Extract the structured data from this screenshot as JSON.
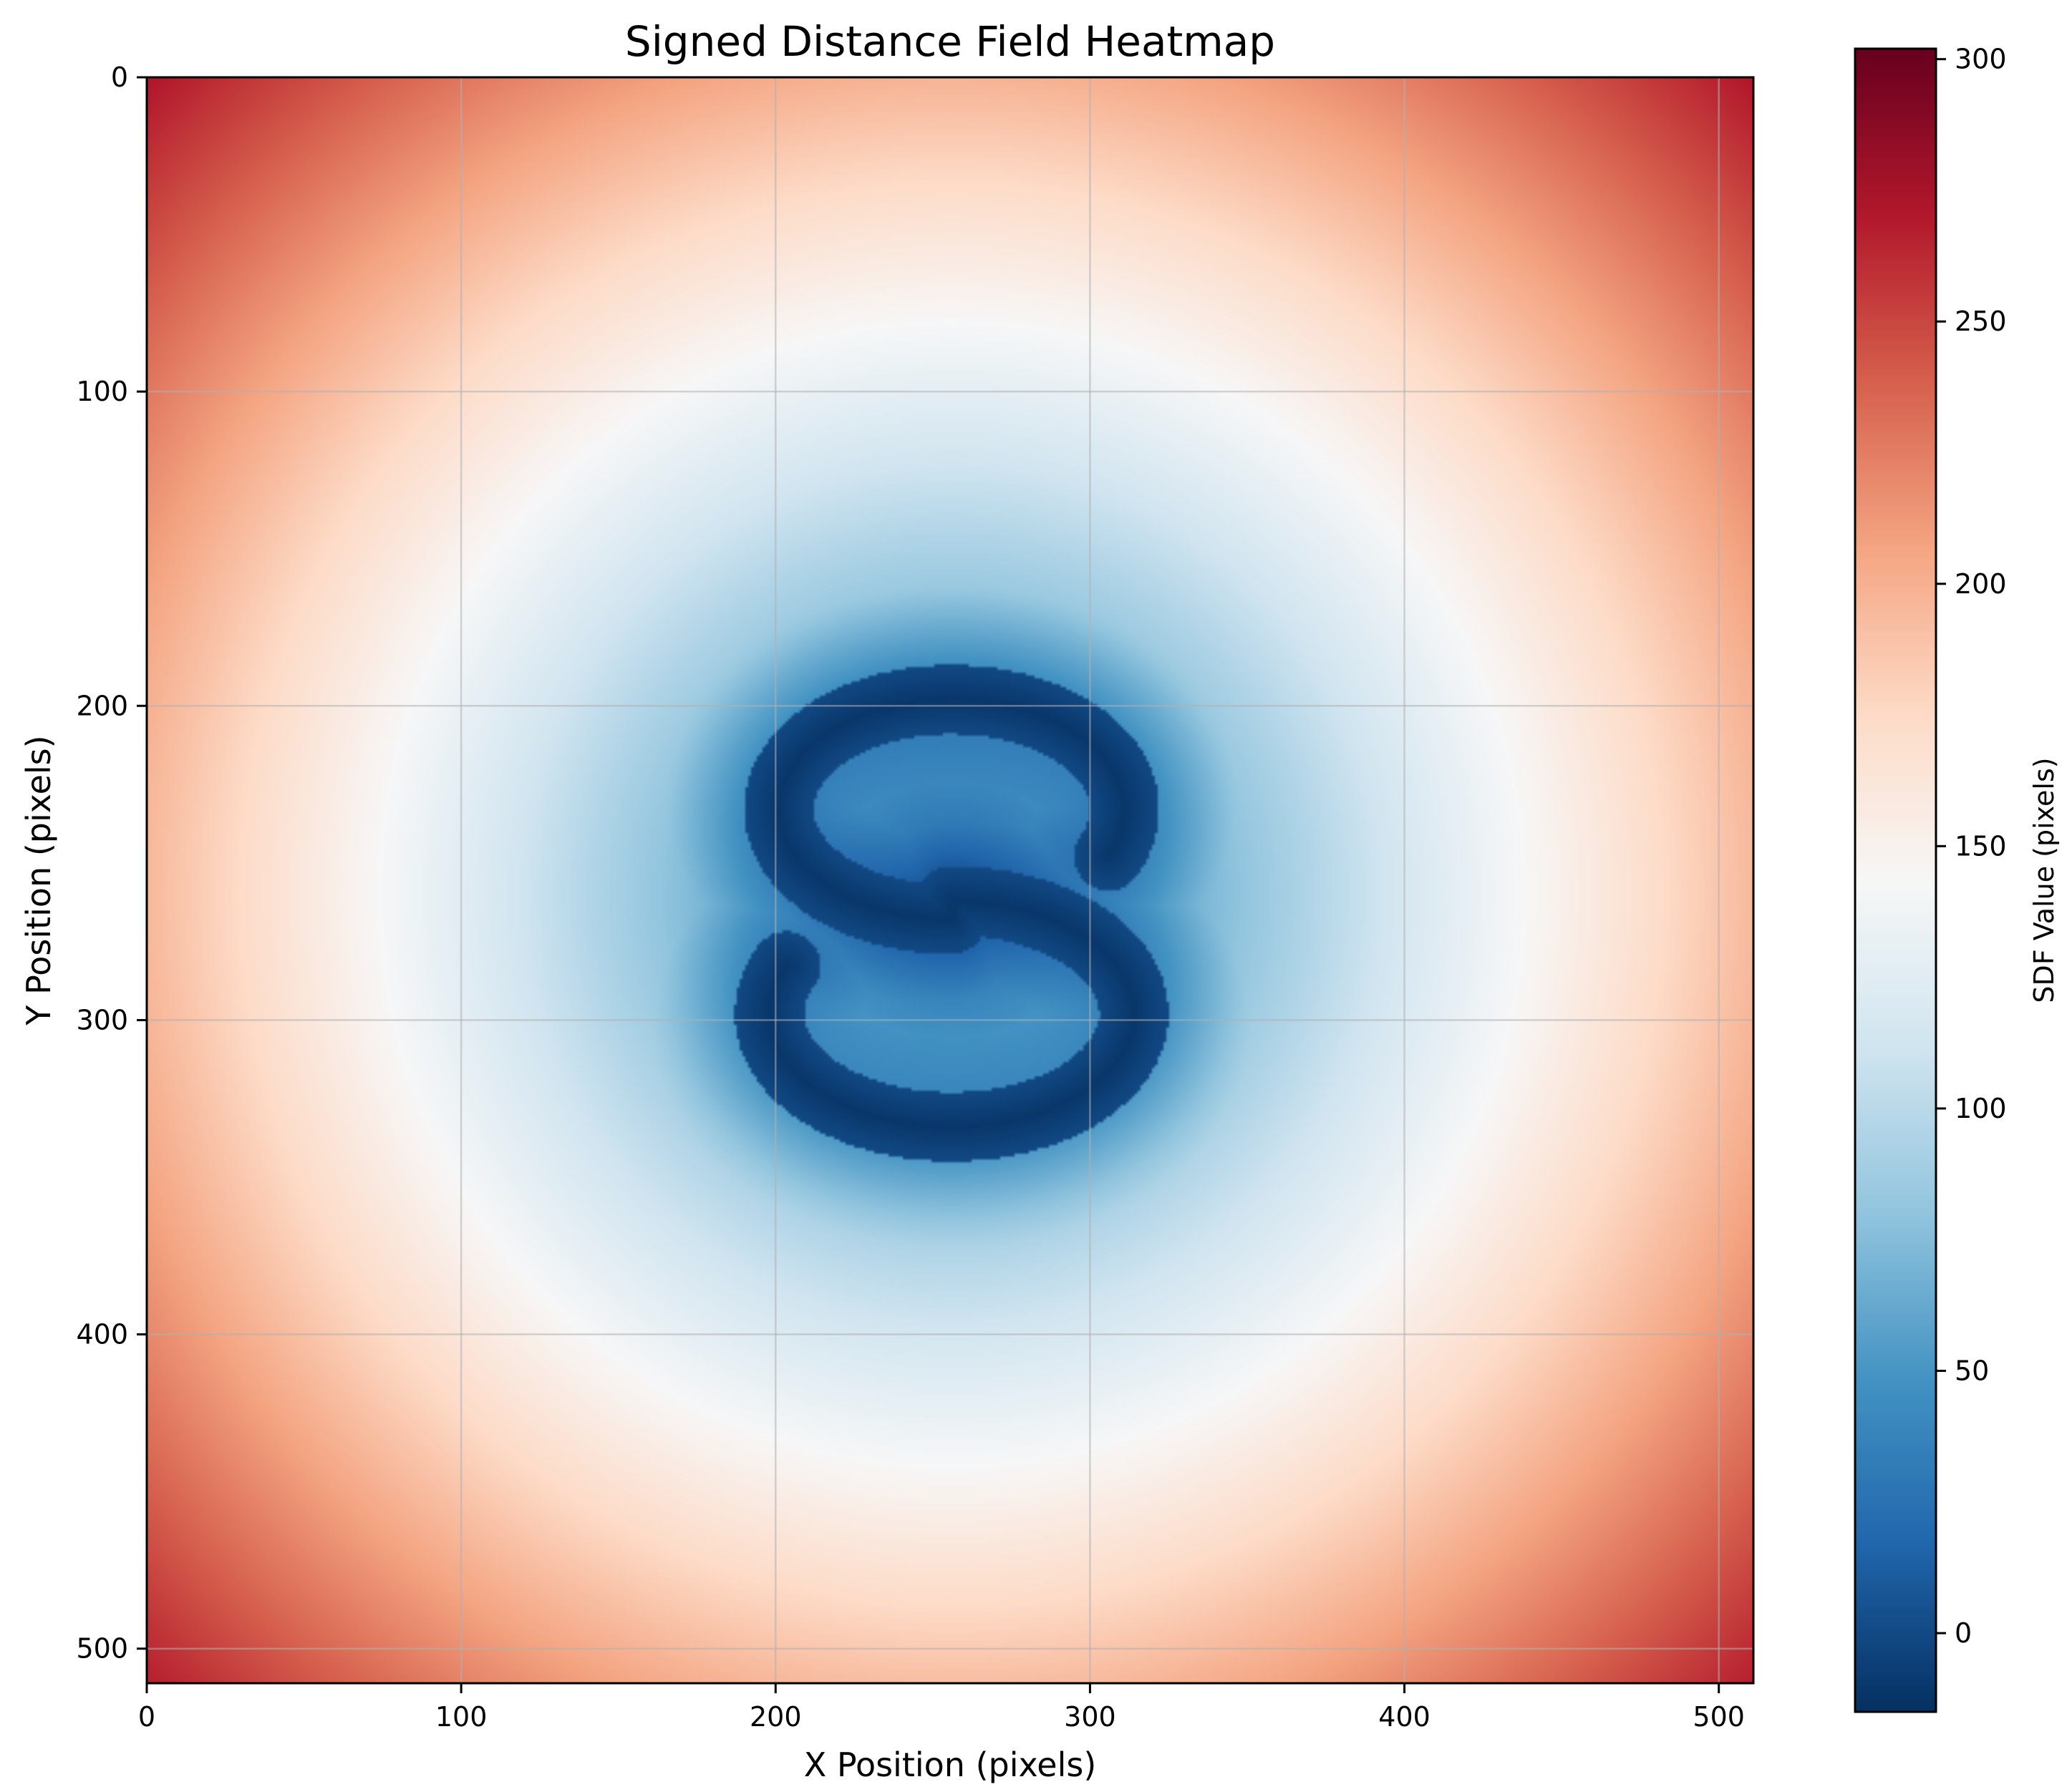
{
  "chart_data": {
    "type": "heatmap",
    "title": "Signed Distance Field Heatmap",
    "xlabel": "X Position (pixels)",
    "ylabel": "Y Position (pixels)",
    "colorbar_label": "SDF Value (pixels)",
    "colormap": "RdBu_r",
    "colormap_stops": [
      "#053061",
      "#2166ac",
      "#4393c3",
      "#92c5de",
      "#d1e5f0",
      "#f7f7f7",
      "#fddbc7",
      "#f4a582",
      "#d6604d",
      "#b2182b",
      "#67001f"
    ],
    "xlim": [
      0,
      511
    ],
    "ylim": [
      511,
      0
    ],
    "xticks": [
      0,
      100,
      200,
      300,
      400,
      500
    ],
    "yticks": [
      0,
      100,
      200,
      300,
      400,
      500
    ],
    "colorbar_ticks": [
      0,
      50,
      100,
      150,
      200,
      250,
      300
    ],
    "value_range": [
      -15,
      302
    ],
    "grid": true,
    "field_description_values": {
      "shape": "S",
      "center": [
        256,
        256
      ],
      "corner_value": 302,
      "min_value": -15
    }
  }
}
